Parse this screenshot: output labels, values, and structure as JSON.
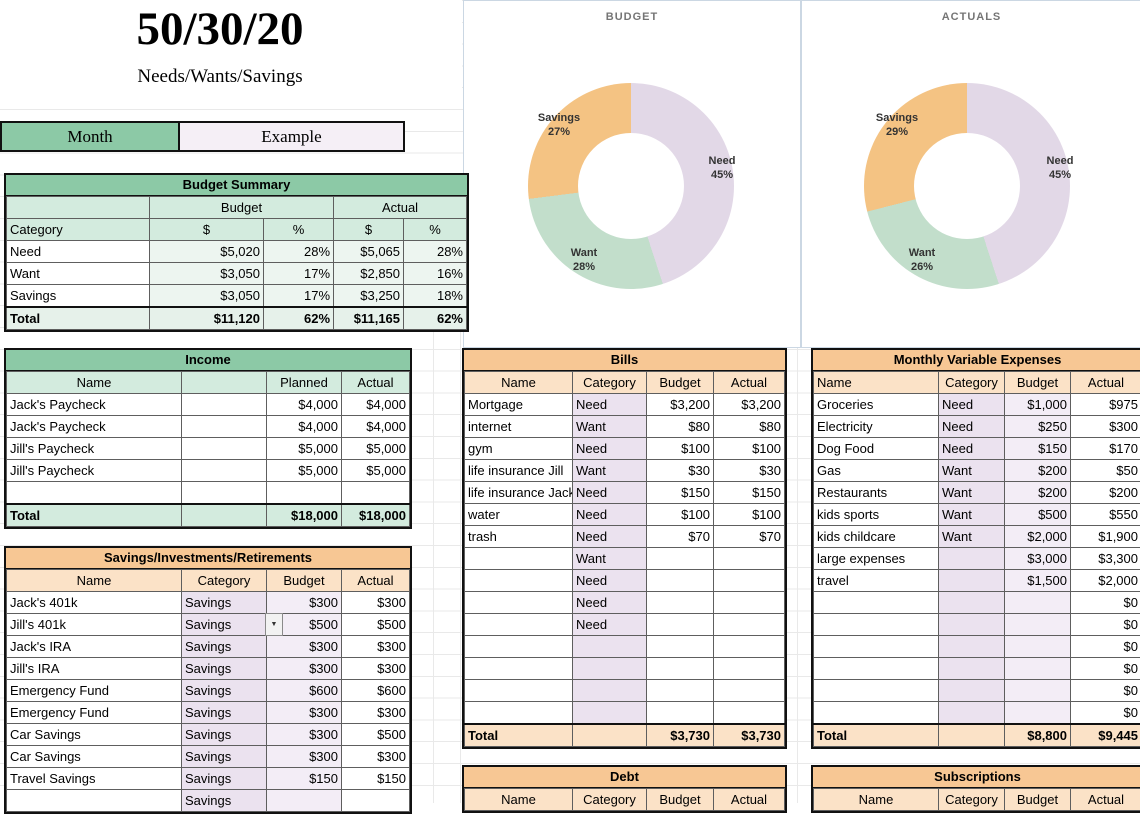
{
  "page": {
    "title": "50/30/20",
    "subtitle": "Needs/Wants/Savings",
    "month_label": "Month",
    "month_value": "Example"
  },
  "icons": {
    "dropdown_arrow": "▼"
  },
  "colors": {
    "green_header": "#8CC9A6",
    "green_light": "#D3EBDE",
    "orange_header": "#F7C794",
    "orange_light": "#FBE2C7",
    "lavender": "#EBE2EF",
    "need_slice": "#E2D8E7",
    "want_slice": "#C2DECB",
    "savings_slice": "#F4C383"
  },
  "chart_data": [
    {
      "type": "pie",
      "donut": true,
      "title": "BUDGET",
      "legend_position": "none",
      "segments": [
        {
          "label": "Need",
          "value": 45,
          "pct": "45%",
          "color": "#E2D8E7"
        },
        {
          "label": "Want",
          "value": 28,
          "pct": "28%",
          "color": "#C2DECB"
        },
        {
          "label": "Savings",
          "value": 27,
          "pct": "27%",
          "color": "#F4C383"
        }
      ]
    },
    {
      "type": "pie",
      "donut": true,
      "title": "ACTUALS",
      "legend_position": "none",
      "segments": [
        {
          "label": "Need",
          "value": 45,
          "pct": "45%",
          "color": "#E2D8E7"
        },
        {
          "label": "Want",
          "value": 26,
          "pct": "26%",
          "color": "#C2DECB"
        },
        {
          "label": "Savings",
          "value": 29,
          "pct": "29%",
          "color": "#F4C383"
        }
      ]
    }
  ],
  "budget_summary": {
    "title": "Budget Summary",
    "group_headers": [
      "Budget",
      "Actual"
    ],
    "col_headers": [
      "Category",
      "$",
      "%",
      "$",
      "%"
    ],
    "rows": [
      [
        "Need",
        "$5,020",
        "28%",
        "$5,065",
        "28%"
      ],
      [
        "Want",
        "$3,050",
        "17%",
        "$2,850",
        "16%"
      ],
      [
        "Savings",
        "$3,050",
        "17%",
        "$3,250",
        "18%"
      ]
    ],
    "total": [
      "Total",
      "$11,120",
      "62%",
      "$11,165",
      "62%"
    ]
  },
  "income": {
    "title": "Income",
    "col_headers": [
      "Name",
      "",
      "Planned",
      "Actual"
    ],
    "rows": [
      [
        "Jack's Paycheck",
        "",
        "$4,000",
        "$4,000"
      ],
      [
        "Jack's Paycheck",
        "",
        "$4,000",
        "$4,000"
      ],
      [
        "Jill's Paycheck",
        "",
        "$5,000",
        "$5,000"
      ],
      [
        "Jill's Paycheck",
        "",
        "$5,000",
        "$5,000"
      ],
      [
        "",
        "",
        "",
        ""
      ]
    ],
    "total": [
      "Total",
      "",
      "$18,000",
      "$18,000"
    ]
  },
  "savings": {
    "title": "Savings/Investments/Retirements",
    "col_headers": [
      "Name",
      "Category",
      "Budget",
      "Actual"
    ],
    "rows": [
      [
        "Jack's 401k",
        "Savings",
        "$300",
        "$300"
      ],
      [
        "Jill's 401k",
        "Savings",
        "$500",
        "$500"
      ],
      [
        "Jack's IRA",
        "Savings",
        "$300",
        "$300"
      ],
      [
        "Jill's IRA",
        "Savings",
        "$300",
        "$300"
      ],
      [
        "Emergency Fund",
        "Savings",
        "$600",
        "$600"
      ],
      [
        "Emergency Fund",
        "Savings",
        "$300",
        "$300"
      ],
      [
        "Car Savings",
        "Savings",
        "$300",
        "$500"
      ],
      [
        "Car Savings",
        "Savings",
        "$300",
        "$300"
      ],
      [
        "Travel Savings",
        "Savings",
        "$150",
        "$150"
      ],
      [
        "",
        "Savings",
        "",
        ""
      ]
    ]
  },
  "bills": {
    "title": "Bills",
    "col_headers": [
      "Name",
      "Category",
      "Budget",
      "Actual"
    ],
    "rows": [
      [
        "Mortgage",
        "Need",
        "$3,200",
        "$3,200"
      ],
      [
        "internet",
        "Want",
        "$80",
        "$80"
      ],
      [
        "gym",
        "Need",
        "$100",
        "$100"
      ],
      [
        "life insurance Jill",
        "Want",
        "$30",
        "$30"
      ],
      [
        "life insurance Jack",
        "Need",
        "$150",
        "$150"
      ],
      [
        "water",
        "Need",
        "$100",
        "$100"
      ],
      [
        "trash",
        "Need",
        "$70",
        "$70"
      ],
      [
        "",
        "Want",
        "",
        ""
      ],
      [
        "",
        "Need",
        "",
        ""
      ],
      [
        "",
        "Need",
        "",
        ""
      ],
      [
        "",
        "Need",
        "",
        ""
      ],
      [
        "",
        "",
        "",
        ""
      ],
      [
        "",
        "",
        "",
        ""
      ],
      [
        "",
        "",
        "",
        ""
      ],
      [
        "",
        "",
        "",
        ""
      ]
    ],
    "total": [
      "Total",
      "",
      "$3,730",
      "$3,730"
    ]
  },
  "monthly_variable_expenses": {
    "title": "Monthly Variable Expenses",
    "col_headers": [
      "Name",
      "Category",
      "Budget",
      "Actual"
    ],
    "rows": [
      [
        "Groceries",
        "Need",
        "$1,000",
        "$975"
      ],
      [
        "Electricity",
        "Need",
        "$250",
        "$300"
      ],
      [
        "Dog Food",
        "Need",
        "$150",
        "$170"
      ],
      [
        "Gas",
        "Want",
        "$200",
        "$50"
      ],
      [
        "Restaurants",
        "Want",
        "$200",
        "$200"
      ],
      [
        "kids sports",
        "Want",
        "$500",
        "$550"
      ],
      [
        "kids childcare",
        "Want",
        "$2,000",
        "$1,900"
      ],
      [
        "large expenses",
        "",
        "$3,000",
        "$3,300"
      ],
      [
        "travel",
        "",
        "$1,500",
        "$2,000"
      ],
      [
        "",
        "",
        "",
        "$0"
      ],
      [
        "",
        "",
        "",
        "$0"
      ],
      [
        "",
        "",
        "",
        "$0"
      ],
      [
        "",
        "",
        "",
        "$0"
      ],
      [
        "",
        "",
        "",
        "$0"
      ],
      [
        "",
        "",
        "",
        "$0"
      ]
    ],
    "total": [
      "Total",
      "",
      "$8,800",
      "$9,445"
    ]
  },
  "debt": {
    "title": "Debt",
    "col_headers": [
      "Name",
      "Category",
      "Budget",
      "Actual"
    ]
  },
  "subscriptions": {
    "title": "Subscriptions",
    "col_headers": [
      "Name",
      "Category",
      "Budget",
      "Actual"
    ]
  }
}
